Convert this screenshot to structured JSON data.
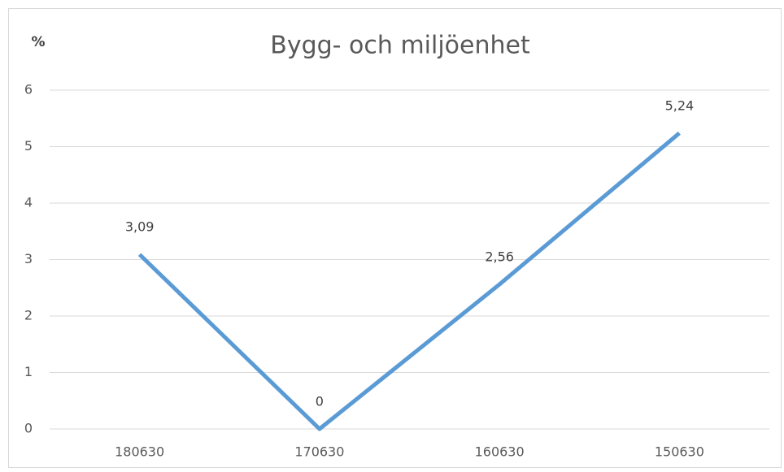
{
  "chart_data": {
    "type": "line",
    "title": "Bygg- och miljöenhet",
    "y_label": "%",
    "categories": [
      "180630",
      "170630",
      "160630",
      "150630"
    ],
    "series": [
      {
        "name": "Bygg- och miljöenhet",
        "color": "#5b9bd5",
        "values": [
          3.09,
          0,
          2.56,
          5.24
        ],
        "value_labels": [
          "3,09",
          "0",
          "2,56",
          "5,24"
        ]
      }
    ],
    "ylim": [
      0,
      6
    ],
    "yticks": [
      0,
      1,
      2,
      3,
      4,
      5,
      6
    ],
    "grid": true
  }
}
